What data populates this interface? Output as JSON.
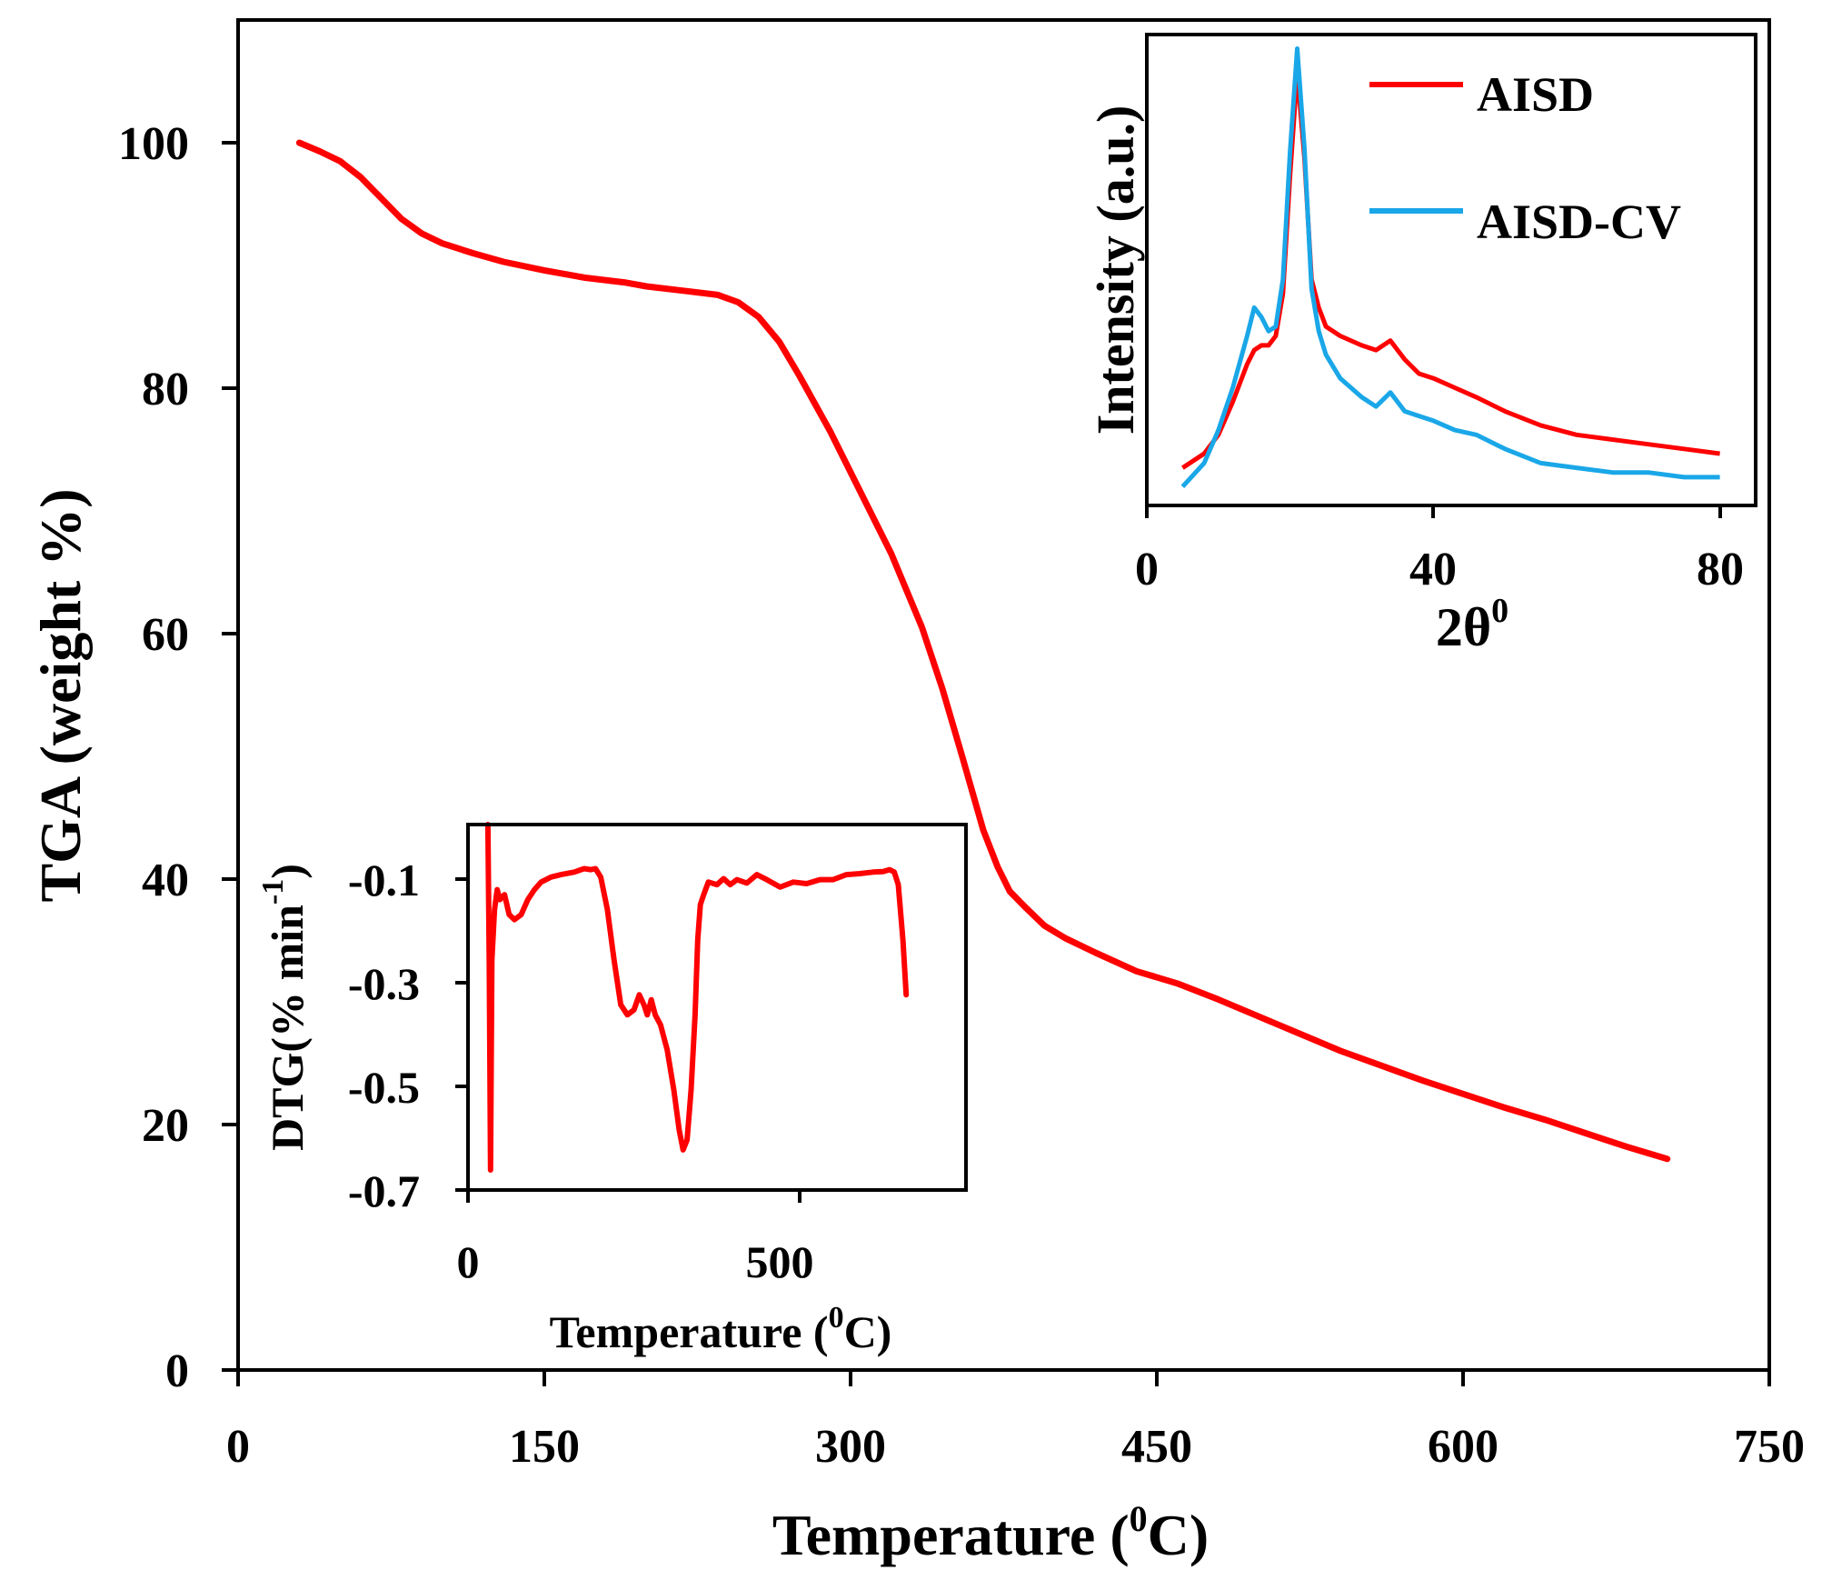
{
  "chart_data": [
    {
      "id": "main",
      "type": "line",
      "title": "",
      "xlabel": "Temperature (",
      "xlabel_sup": "0",
      "xlabel_end": "C)",
      "ylabel": "TGA (weight %)",
      "xlim": [
        0,
        750
      ],
      "ylim": [
        0,
        110
      ],
      "xticks": [
        "0",
        "150",
        "300",
        "450",
        "600",
        "750"
      ],
      "yticks": [
        "0",
        "20",
        "40",
        "60",
        "80",
        "100"
      ],
      "series": [
        {
          "name": "TGA",
          "color": "#ff0000",
          "x": [
            30,
            40,
            50,
            60,
            70,
            80,
            90,
            100,
            115,
            130,
            150,
            170,
            190,
            200,
            220,
            235,
            245,
            255,
            265,
            275,
            290,
            305,
            320,
            335,
            345,
            355,
            365,
            372,
            378,
            385,
            395,
            405,
            420,
            440,
            460,
            480,
            500,
            520,
            540,
            560,
            580,
            600,
            620,
            640,
            660,
            680,
            700
          ],
          "y": [
            100,
            99.3,
            98.5,
            97.2,
            95.5,
            93.8,
            92.6,
            91.8,
            91.0,
            90.3,
            89.6,
            89.0,
            88.6,
            88.3,
            87.9,
            87.6,
            87.0,
            85.8,
            83.8,
            81.0,
            76.5,
            71.5,
            66.5,
            60.5,
            55.5,
            49.8,
            44.0,
            41.0,
            39.0,
            37.8,
            36.2,
            35.2,
            34.0,
            32.5,
            31.5,
            30.2,
            28.8,
            27.4,
            26.0,
            24.8,
            23.6,
            22.5,
            21.4,
            20.4,
            19.3,
            18.2,
            17.2
          ]
        }
      ]
    },
    {
      "id": "dtg-inset",
      "type": "line",
      "xlabel": "Temperature (",
      "xlabel_sup": "0",
      "xlabel_end": "C)",
      "ylabel": "DTG(% min",
      "ylabel_sup": "-1",
      "ylabel_end": ")",
      "xlim": [
        0,
        750
      ],
      "ylim": [
        -0.7,
        0.03
      ],
      "xticks": [
        "0",
        "500"
      ],
      "yticks": [
        "-0.1",
        "-0.3",
        "-0.5",
        "-0.7"
      ],
      "series": [
        {
          "name": "DTG",
          "color": "#ff0000",
          "x": [
            30,
            32,
            34,
            36,
            40,
            44,
            48,
            55,
            62,
            70,
            80,
            90,
            100,
            110,
            125,
            140,
            160,
            175,
            185,
            192,
            200,
            210,
            220,
            230,
            240,
            250,
            258,
            265,
            270,
            276,
            282,
            290,
            300,
            310,
            318,
            324,
            330,
            336,
            342,
            346,
            350,
            355,
            362,
            375,
            385,
            395,
            405,
            420,
            435,
            450,
            470,
            490,
            510,
            530,
            550,
            570,
            590,
            610,
            625,
            635,
            642,
            648,
            655,
            660
          ],
          "y": [
            0.03,
            -0.25,
            -0.66,
            -0.24,
            -0.14,
            -0.1,
            -0.12,
            -0.11,
            -0.15,
            -0.16,
            -0.15,
            -0.12,
            -0.1,
            -0.085,
            -0.075,
            -0.07,
            -0.065,
            -0.058,
            -0.06,
            -0.058,
            -0.075,
            -0.14,
            -0.24,
            -0.33,
            -0.35,
            -0.34,
            -0.31,
            -0.33,
            -0.35,
            -0.32,
            -0.35,
            -0.37,
            -0.42,
            -0.5,
            -0.58,
            -0.62,
            -0.6,
            -0.5,
            -0.35,
            -0.2,
            -0.13,
            -0.11,
            -0.085,
            -0.09,
            -0.078,
            -0.09,
            -0.08,
            -0.087,
            -0.07,
            -0.08,
            -0.095,
            -0.085,
            -0.088,
            -0.08,
            -0.08,
            -0.07,
            -0.068,
            -0.065,
            -0.064,
            -0.06,
            -0.065,
            -0.09,
            -0.2,
            -0.31
          ]
        }
      ]
    },
    {
      "id": "xrd-inset",
      "type": "line",
      "xlabel": "2θ",
      "xlabel_sup": "0",
      "ylabel": "Intensity (a.u.)",
      "xlim": [
        0,
        85
      ],
      "ylim": [
        0,
        100
      ],
      "xticks": [
        "0",
        "40",
        "80"
      ],
      "yticks": [],
      "legend": "top-right",
      "series": [
        {
          "name": "AISD",
          "color": "#ff0000",
          "x": [
            5,
            8,
            10,
            12,
            14,
            15,
            16,
            17,
            18,
            19,
            20,
            21,
            22,
            23,
            24,
            25,
            27,
            30,
            32,
            34,
            36,
            38,
            40,
            43,
            46,
            50,
            55,
            60,
            65,
            70,
            75,
            80
          ],
          "y": [
            8,
            11,
            15,
            22,
            30,
            33,
            34,
            34,
            36,
            45,
            70,
            92,
            74,
            48,
            42,
            38,
            36,
            34,
            33,
            35,
            31,
            28,
            27,
            25,
            23,
            20,
            17,
            15,
            14,
            13,
            12,
            11
          ]
        },
        {
          "name": "AISD-CV",
          "color": "#1aa7e8",
          "x": [
            5,
            8,
            10,
            12,
            14,
            15,
            16,
            17,
            18,
            19,
            20,
            21,
            22,
            23,
            24,
            25,
            27,
            30,
            32,
            34,
            36,
            38,
            40,
            43,
            46,
            50,
            55,
            60,
            65,
            70,
            75,
            80
          ],
          "y": [
            4,
            9,
            16,
            25,
            36,
            42,
            40,
            37,
            38,
            48,
            75,
            97,
            76,
            46,
            37,
            32,
            27,
            23,
            21,
            24,
            20,
            19,
            18,
            16,
            15,
            12,
            9,
            8,
            7,
            7,
            6,
            6
          ]
        }
      ]
    }
  ]
}
